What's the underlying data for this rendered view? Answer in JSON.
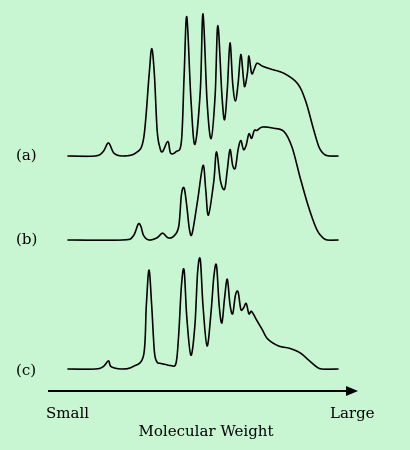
{
  "chart_data": {
    "type": "line",
    "title": "",
    "xlabel": "Molecular Weight",
    "x_axis_left_label": "Small",
    "x_axis_right_label": "Large",
    "ylabel": "",
    "grid": false,
    "x_range": [
      0,
      1
    ],
    "y_range": [
      0,
      1
    ],
    "series": [
      {
        "name": "(a)",
        "points": [
          [
            0.0,
            0.0
          ],
          [
            0.1,
            0.0
          ],
          [
            0.13,
            0.03
          ],
          [
            0.15,
            0.09
          ],
          [
            0.17,
            0.02
          ],
          [
            0.2,
            0.0
          ],
          [
            0.25,
            0.02
          ],
          [
            0.28,
            0.12
          ],
          [
            0.3,
            0.55
          ],
          [
            0.31,
            0.74
          ],
          [
            0.32,
            0.56
          ],
          [
            0.33,
            0.18
          ],
          [
            0.34,
            0.06
          ],
          [
            0.35,
            0.03
          ],
          [
            0.37,
            0.1
          ],
          [
            0.38,
            0.02
          ],
          [
            0.4,
            0.03
          ],
          [
            0.42,
            0.1
          ],
          [
            0.43,
            0.55
          ],
          [
            0.44,
            0.96
          ],
          [
            0.455,
            0.4
          ],
          [
            0.47,
            0.08
          ],
          [
            0.49,
            0.45
          ],
          [
            0.5,
            0.98
          ],
          [
            0.515,
            0.38
          ],
          [
            0.53,
            0.12
          ],
          [
            0.545,
            0.42
          ],
          [
            0.555,
            0.9
          ],
          [
            0.57,
            0.42
          ],
          [
            0.58,
            0.25
          ],
          [
            0.59,
            0.46
          ],
          [
            0.6,
            0.78
          ],
          [
            0.61,
            0.5
          ],
          [
            0.62,
            0.38
          ],
          [
            0.63,
            0.5
          ],
          [
            0.64,
            0.7
          ],
          [
            0.65,
            0.53
          ],
          [
            0.655,
            0.48
          ],
          [
            0.665,
            0.58
          ],
          [
            0.67,
            0.69
          ],
          [
            0.68,
            0.57
          ],
          [
            0.69,
            0.6
          ],
          [
            0.7,
            0.64
          ],
          [
            0.72,
            0.62
          ],
          [
            0.75,
            0.6
          ],
          [
            0.8,
            0.57
          ],
          [
            0.85,
            0.5
          ],
          [
            0.88,
            0.38
          ],
          [
            0.91,
            0.18
          ],
          [
            0.93,
            0.06
          ],
          [
            0.95,
            0.01
          ],
          [
            0.97,
            0.0
          ],
          [
            1.0,
            0.0
          ]
        ]
      },
      {
        "name": "(b)",
        "points": [
          [
            0.0,
            0.0
          ],
          [
            0.2,
            0.0
          ],
          [
            0.24,
            0.03
          ],
          [
            0.26,
            0.14
          ],
          [
            0.27,
            0.12
          ],
          [
            0.28,
            0.04
          ],
          [
            0.3,
            0.0
          ],
          [
            0.33,
            0.02
          ],
          [
            0.35,
            0.06
          ],
          [
            0.37,
            0.02
          ],
          [
            0.39,
            0.03
          ],
          [
            0.41,
            0.12
          ],
          [
            0.42,
            0.4
          ],
          [
            0.43,
            0.46
          ],
          [
            0.44,
            0.3
          ],
          [
            0.45,
            0.09
          ],
          [
            0.46,
            0.06
          ],
          [
            0.48,
            0.35
          ],
          [
            0.5,
            0.66
          ],
          [
            0.51,
            0.45
          ],
          [
            0.52,
            0.22
          ],
          [
            0.54,
            0.52
          ],
          [
            0.55,
            0.78
          ],
          [
            0.565,
            0.52
          ],
          [
            0.58,
            0.45
          ],
          [
            0.59,
            0.62
          ],
          [
            0.6,
            0.8
          ],
          [
            0.61,
            0.66
          ],
          [
            0.62,
            0.64
          ],
          [
            0.63,
            0.8
          ],
          [
            0.64,
            0.88
          ],
          [
            0.65,
            0.8
          ],
          [
            0.66,
            0.84
          ],
          [
            0.67,
            0.94
          ],
          [
            0.68,
            0.9
          ],
          [
            0.69,
            0.97
          ],
          [
            0.7,
            0.97
          ],
          [
            0.72,
            1.0
          ],
          [
            0.76,
            0.99
          ],
          [
            0.8,
            0.96
          ],
          [
            0.83,
            0.82
          ],
          [
            0.86,
            0.55
          ],
          [
            0.89,
            0.3
          ],
          [
            0.92,
            0.1
          ],
          [
            0.94,
            0.03
          ],
          [
            0.96,
            0.0
          ],
          [
            1.0,
            0.0
          ]
        ]
      },
      {
        "name": "(c)",
        "points": [
          [
            0.0,
            0.0
          ],
          [
            0.1,
            0.0
          ],
          [
            0.13,
            0.02
          ],
          [
            0.15,
            0.07
          ],
          [
            0.16,
            0.02
          ],
          [
            0.2,
            0.0
          ],
          [
            0.24,
            0.02
          ],
          [
            0.28,
            0.12
          ],
          [
            0.29,
            0.55
          ],
          [
            0.3,
            0.86
          ],
          [
            0.31,
            0.55
          ],
          [
            0.32,
            0.15
          ],
          [
            0.33,
            0.06
          ],
          [
            0.34,
            0.05
          ],
          [
            0.36,
            0.04
          ],
          [
            0.38,
            0.03
          ],
          [
            0.4,
            0.05
          ],
          [
            0.41,
            0.3
          ],
          [
            0.42,
            0.72
          ],
          [
            0.43,
            0.86
          ],
          [
            0.44,
            0.45
          ],
          [
            0.455,
            0.12
          ],
          [
            0.47,
            0.38
          ],
          [
            0.48,
            0.84
          ],
          [
            0.49,
            0.95
          ],
          [
            0.5,
            0.55
          ],
          [
            0.515,
            0.2
          ],
          [
            0.53,
            0.5
          ],
          [
            0.54,
            0.8
          ],
          [
            0.55,
            0.9
          ],
          [
            0.56,
            0.55
          ],
          [
            0.57,
            0.4
          ],
          [
            0.58,
            0.62
          ],
          [
            0.59,
            0.78
          ],
          [
            0.6,
            0.56
          ],
          [
            0.61,
            0.48
          ],
          [
            0.62,
            0.64
          ],
          [
            0.63,
            0.67
          ],
          [
            0.64,
            0.52
          ],
          [
            0.65,
            0.53
          ],
          [
            0.66,
            0.57
          ],
          [
            0.67,
            0.48
          ],
          [
            0.68,
            0.5
          ],
          [
            0.7,
            0.42
          ],
          [
            0.72,
            0.34
          ],
          [
            0.74,
            0.26
          ],
          [
            0.78,
            0.2
          ],
          [
            0.82,
            0.18
          ],
          [
            0.86,
            0.14
          ],
          [
            0.89,
            0.08
          ],
          [
            0.92,
            0.02
          ],
          [
            0.94,
            0.0
          ],
          [
            1.0,
            0.0
          ]
        ]
      }
    ]
  }
}
